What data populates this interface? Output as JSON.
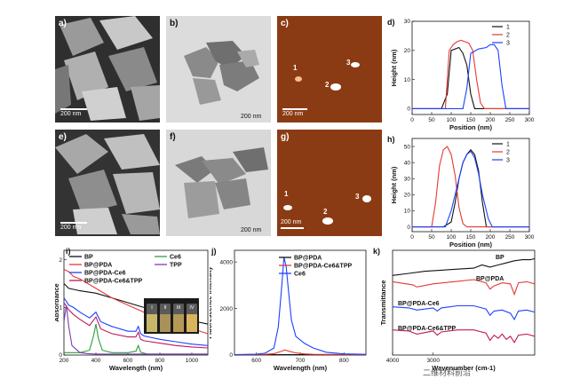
{
  "panels": {
    "a": {
      "label": "a)",
      "scale": "200 nm"
    },
    "b": {
      "label": "b)",
      "scale": "200 nm"
    },
    "c": {
      "label": "c)",
      "scale": "200 nm",
      "particles": [
        "1",
        "2",
        "3"
      ]
    },
    "e": {
      "label": "e)",
      "scale": "200 nm"
    },
    "f": {
      "label": "f)",
      "scale": "200 nm"
    },
    "g": {
      "label": "g)",
      "scale": "200 nm",
      "particles": [
        "1",
        "2",
        "3"
      ]
    }
  },
  "chart_data": [
    {
      "id": "d",
      "label": "d)",
      "type": "line",
      "xlabel": "Position (nm)",
      "ylabel": "Height (nm)",
      "xlim": [
        0,
        300
      ],
      "ylim": [
        -2,
        30
      ],
      "xticks": [
        0,
        50,
        100,
        150,
        200,
        250,
        300
      ],
      "yticks": [
        0,
        10,
        20,
        30
      ],
      "legend": [
        "1",
        "2",
        "3"
      ],
      "series": [
        {
          "name": "1",
          "color": "#111111",
          "x": [
            0,
            50,
            60,
            75,
            90,
            100,
            110,
            120,
            130,
            140,
            150,
            160,
            300
          ],
          "y": [
            0,
            0,
            0,
            0,
            5,
            20,
            20.5,
            21,
            19,
            15,
            5,
            0,
            0
          ]
        },
        {
          "name": "2",
          "color": "#e53935",
          "x": [
            0,
            75,
            85,
            95,
            105,
            115,
            125,
            135,
            145,
            155,
            165,
            175,
            185,
            300
          ],
          "y": [
            0,
            0,
            0,
            20,
            22,
            23,
            23.5,
            23,
            22.5,
            20,
            10,
            2,
            0,
            0
          ]
        },
        {
          "name": "3",
          "color": "#1e40ff",
          "x": [
            0,
            120,
            130,
            140,
            150,
            170,
            190,
            200,
            210,
            220,
            230,
            240,
            300
          ],
          "y": [
            0,
            0,
            0,
            7,
            19,
            20.5,
            21,
            22,
            22,
            20,
            8,
            0,
            0
          ]
        }
      ]
    },
    {
      "id": "h",
      "label": "h)",
      "type": "line",
      "xlabel": "Position (nm)",
      "ylabel": "Height (nm)",
      "xlim": [
        0,
        300
      ],
      "ylim": [
        -3,
        55
      ],
      "xticks": [
        0,
        50,
        100,
        150,
        200,
        250,
        300
      ],
      "yticks": [
        0,
        10,
        20,
        30,
        40,
        50
      ],
      "legend": [
        "1",
        "2",
        "3"
      ],
      "series": [
        {
          "name": "1",
          "color": "#111111",
          "x": [
            0,
            80,
            100,
            110,
            120,
            130,
            140,
            150,
            160,
            170,
            180,
            190,
            300
          ],
          "y": [
            0,
            0,
            3,
            15,
            30,
            40,
            45,
            48,
            45,
            35,
            15,
            0,
            0
          ]
        },
        {
          "name": "2",
          "color": "#e53935",
          "x": [
            0,
            50,
            60,
            70,
            80,
            90,
            100,
            110,
            120,
            130,
            140,
            300
          ],
          "y": [
            0,
            0,
            15,
            38,
            48,
            50,
            45,
            32,
            12,
            2,
            0,
            0
          ]
        },
        {
          "name": "3",
          "color": "#1e40ff",
          "x": [
            0,
            85,
            100,
            110,
            120,
            130,
            140,
            150,
            160,
            170,
            180,
            195,
            205,
            300
          ],
          "y": [
            0,
            0,
            10,
            20,
            30,
            40,
            45,
            47,
            43,
            33,
            20,
            5,
            0,
            0
          ]
        }
      ]
    },
    {
      "id": "i",
      "label": "i)",
      "type": "line",
      "xlabel": "Wavelength (nm)",
      "ylabel": "Absorbance",
      "xlim": [
        200,
        1100
      ],
      "ylim": [
        0,
        2.2
      ],
      "xticks": [
        200,
        400,
        600,
        800,
        1000
      ],
      "yticks": [
        0,
        1,
        2
      ],
      "inset_labels": [
        "I",
        "II",
        "III",
        "IV"
      ],
      "legend_left": [
        {
          "name": "BP",
          "color": "#111111"
        },
        {
          "name": "BP@PDA",
          "color": "#e53935"
        },
        {
          "name": "BP@PDA-Ce6",
          "color": "#1e40ff"
        },
        {
          "name": "BP@PDA-Ce6&TPP",
          "color": "#c2185b"
        }
      ],
      "legend_right": [
        {
          "name": "Ce6",
          "color": "#2e9e3a"
        },
        {
          "name": "TPP",
          "color": "#7b3fb5"
        }
      ],
      "series": [
        {
          "name": "BP",
          "color": "#111111",
          "x": [
            200,
            230,
            260,
            300,
            400,
            500,
            600,
            700,
            800,
            900,
            1000,
            1100
          ],
          "y": [
            1.5,
            1.4,
            1.38,
            1.35,
            1.3,
            1.2,
            1.1,
            1.0,
            0.9,
            0.8,
            0.72,
            0.65
          ]
        },
        {
          "name": "BP@PDA",
          "color": "#e53935",
          "x": [
            200,
            230,
            260,
            300,
            400,
            500,
            600,
            700,
            800,
            900,
            1000,
            1100
          ],
          "y": [
            1.8,
            1.75,
            1.65,
            1.6,
            1.4,
            1.2,
            1.05,
            0.9,
            0.78,
            0.65,
            0.55,
            0.45
          ]
        },
        {
          "name": "BP@PDA-Ce6",
          "color": "#1e40ff",
          "x": [
            200,
            230,
            260,
            300,
            360,
            400,
            430,
            500,
            600,
            650,
            665,
            680,
            700,
            800,
            900,
            1000,
            1100
          ],
          "y": [
            1.2,
            1.05,
            1.0,
            0.9,
            0.78,
            0.9,
            0.7,
            0.6,
            0.5,
            0.5,
            0.6,
            0.45,
            0.4,
            0.33,
            0.28,
            0.23,
            0.2
          ]
        },
        {
          "name": "BP@PDA-Ce6&TPP",
          "color": "#c2185b",
          "x": [
            200,
            230,
            260,
            300,
            360,
            400,
            430,
            500,
            600,
            650,
            665,
            680,
            700,
            800,
            900,
            1000,
            1100
          ],
          "y": [
            1.1,
            0.95,
            0.85,
            0.75,
            0.62,
            0.8,
            0.55,
            0.45,
            0.38,
            0.38,
            0.48,
            0.33,
            0.3,
            0.25,
            0.2,
            0.17,
            0.15
          ]
        },
        {
          "name": "Ce6",
          "color": "#2e9e3a",
          "x": [
            200,
            300,
            360,
            385,
            400,
            415,
            440,
            500,
            600,
            650,
            665,
            680,
            720,
            1100
          ],
          "y": [
            0.05,
            0.05,
            0.1,
            0.4,
            0.65,
            0.35,
            0.1,
            0.05,
            0.05,
            0.08,
            0.2,
            0.06,
            0.02,
            0.02
          ]
        },
        {
          "name": "TPP",
          "color": "#7b3fb5",
          "x": [
            200,
            215,
            230,
            250,
            300,
            350,
            400,
            500,
            1100
          ],
          "y": [
            0.7,
            1.05,
            0.6,
            0.2,
            0.05,
            0.03,
            0.02,
            0.02,
            0.02
          ]
        }
      ]
    },
    {
      "id": "j",
      "label": "j)",
      "type": "line",
      "xlabel": "Wavelength (nm)",
      "ylabel": "Fluorescence intensity",
      "xlim": [
        550,
        850
      ],
      "ylim": [
        0,
        4500
      ],
      "xticks": [
        600,
        700,
        800
      ],
      "yticks": [
        0,
        2000,
        4000
      ],
      "legend": [
        {
          "name": "BP@PDA",
          "color": "#111111"
        },
        {
          "name": "BP@PDA-Ce6&TPP",
          "color": "#e53935"
        },
        {
          "name": "Ce6",
          "color": "#1e40ff"
        }
      ],
      "series": [
        {
          "name": "BP@PDA",
          "color": "#111111",
          "x": [
            550,
            850
          ],
          "y": [
            15,
            15
          ]
        },
        {
          "name": "BP@PDA-Ce6&TPP",
          "color": "#e53935",
          "x": [
            550,
            620,
            640,
            655,
            665,
            675,
            690,
            710,
            730,
            850
          ],
          "y": [
            20,
            30,
            60,
            150,
            220,
            160,
            90,
            50,
            30,
            20
          ]
        },
        {
          "name": "Ce6",
          "color": "#1e40ff",
          "x": [
            550,
            600,
            620,
            640,
            650,
            658,
            663,
            668,
            673,
            680,
            690,
            710,
            730,
            760,
            800,
            850
          ],
          "y": [
            20,
            40,
            80,
            300,
            1200,
            3000,
            4200,
            3800,
            2800,
            1500,
            800,
            500,
            300,
            120,
            50,
            30
          ]
        }
      ]
    },
    {
      "id": "k",
      "label": "k)",
      "type": "line",
      "xlabel": "Wavenumber (cm-1)",
      "ylabel": "Transmittance",
      "xlim": [
        4000,
        500
      ],
      "ylim": [
        0,
        10
      ],
      "xticks": [
        4000,
        3000
      ],
      "series_labels": [
        "BP",
        "BP@PDA",
        "BP@PDA-Ce6",
        "BP@PDA-Ce6&TPP"
      ],
      "series": [
        {
          "name": "BP",
          "color": "#111111",
          "x": [
            4000,
            3600,
            3200,
            2800,
            2400,
            2000,
            1800,
            1600,
            1400,
            1200,
            1000,
            800,
            600,
            500
          ],
          "y": [
            7.6,
            7.8,
            8.0,
            8.1,
            8.2,
            8.3,
            8.6,
            8.4,
            8.6,
            8.8,
            9.0,
            9.1,
            9.1,
            9.2
          ]
        },
        {
          "name": "BP@PDA",
          "color": "#e53935",
          "x": [
            4000,
            3500,
            3400,
            3000,
            2500,
            2000,
            1700,
            1600,
            1500,
            1300,
            1100,
            1000,
            900,
            700,
            500
          ],
          "y": [
            7.0,
            6.7,
            6.5,
            6.8,
            7.0,
            7.2,
            6.9,
            6.3,
            6.6,
            6.9,
            6.8,
            5.8,
            6.9,
            7.0,
            6.8
          ]
        },
        {
          "name": "BP@PDA-Ce6",
          "color": "#1e40ff",
          "x": [
            4000,
            3600,
            3400,
            3000,
            2900,
            2800,
            2400,
            2000,
            1700,
            1600,
            1500,
            1300,
            1100,
            1000,
            900,
            700,
            500
          ],
          "y": [
            4.6,
            4.5,
            4.3,
            4.5,
            4.2,
            4.5,
            4.7,
            4.7,
            4.4,
            3.8,
            4.2,
            4.3,
            4.0,
            3.4,
            4.2,
            4.3,
            4.1
          ]
        },
        {
          "name": "BP@PDA-Ce6&TPP",
          "color": "#c2185b",
          "x": [
            4000,
            3600,
            3400,
            3000,
            2900,
            2800,
            2400,
            2000,
            1700,
            1600,
            1500,
            1400,
            1300,
            1200,
            1100,
            1000,
            900,
            700,
            500
          ],
          "y": [
            2.4,
            2.3,
            2.0,
            2.3,
            1.9,
            2.2,
            2.4,
            2.4,
            2.1,
            1.4,
            1.9,
            1.6,
            2.0,
            1.5,
            1.8,
            1.2,
            1.9,
            2.0,
            1.8
          ]
        }
      ]
    }
  ],
  "watermark": "二维材料前沿"
}
